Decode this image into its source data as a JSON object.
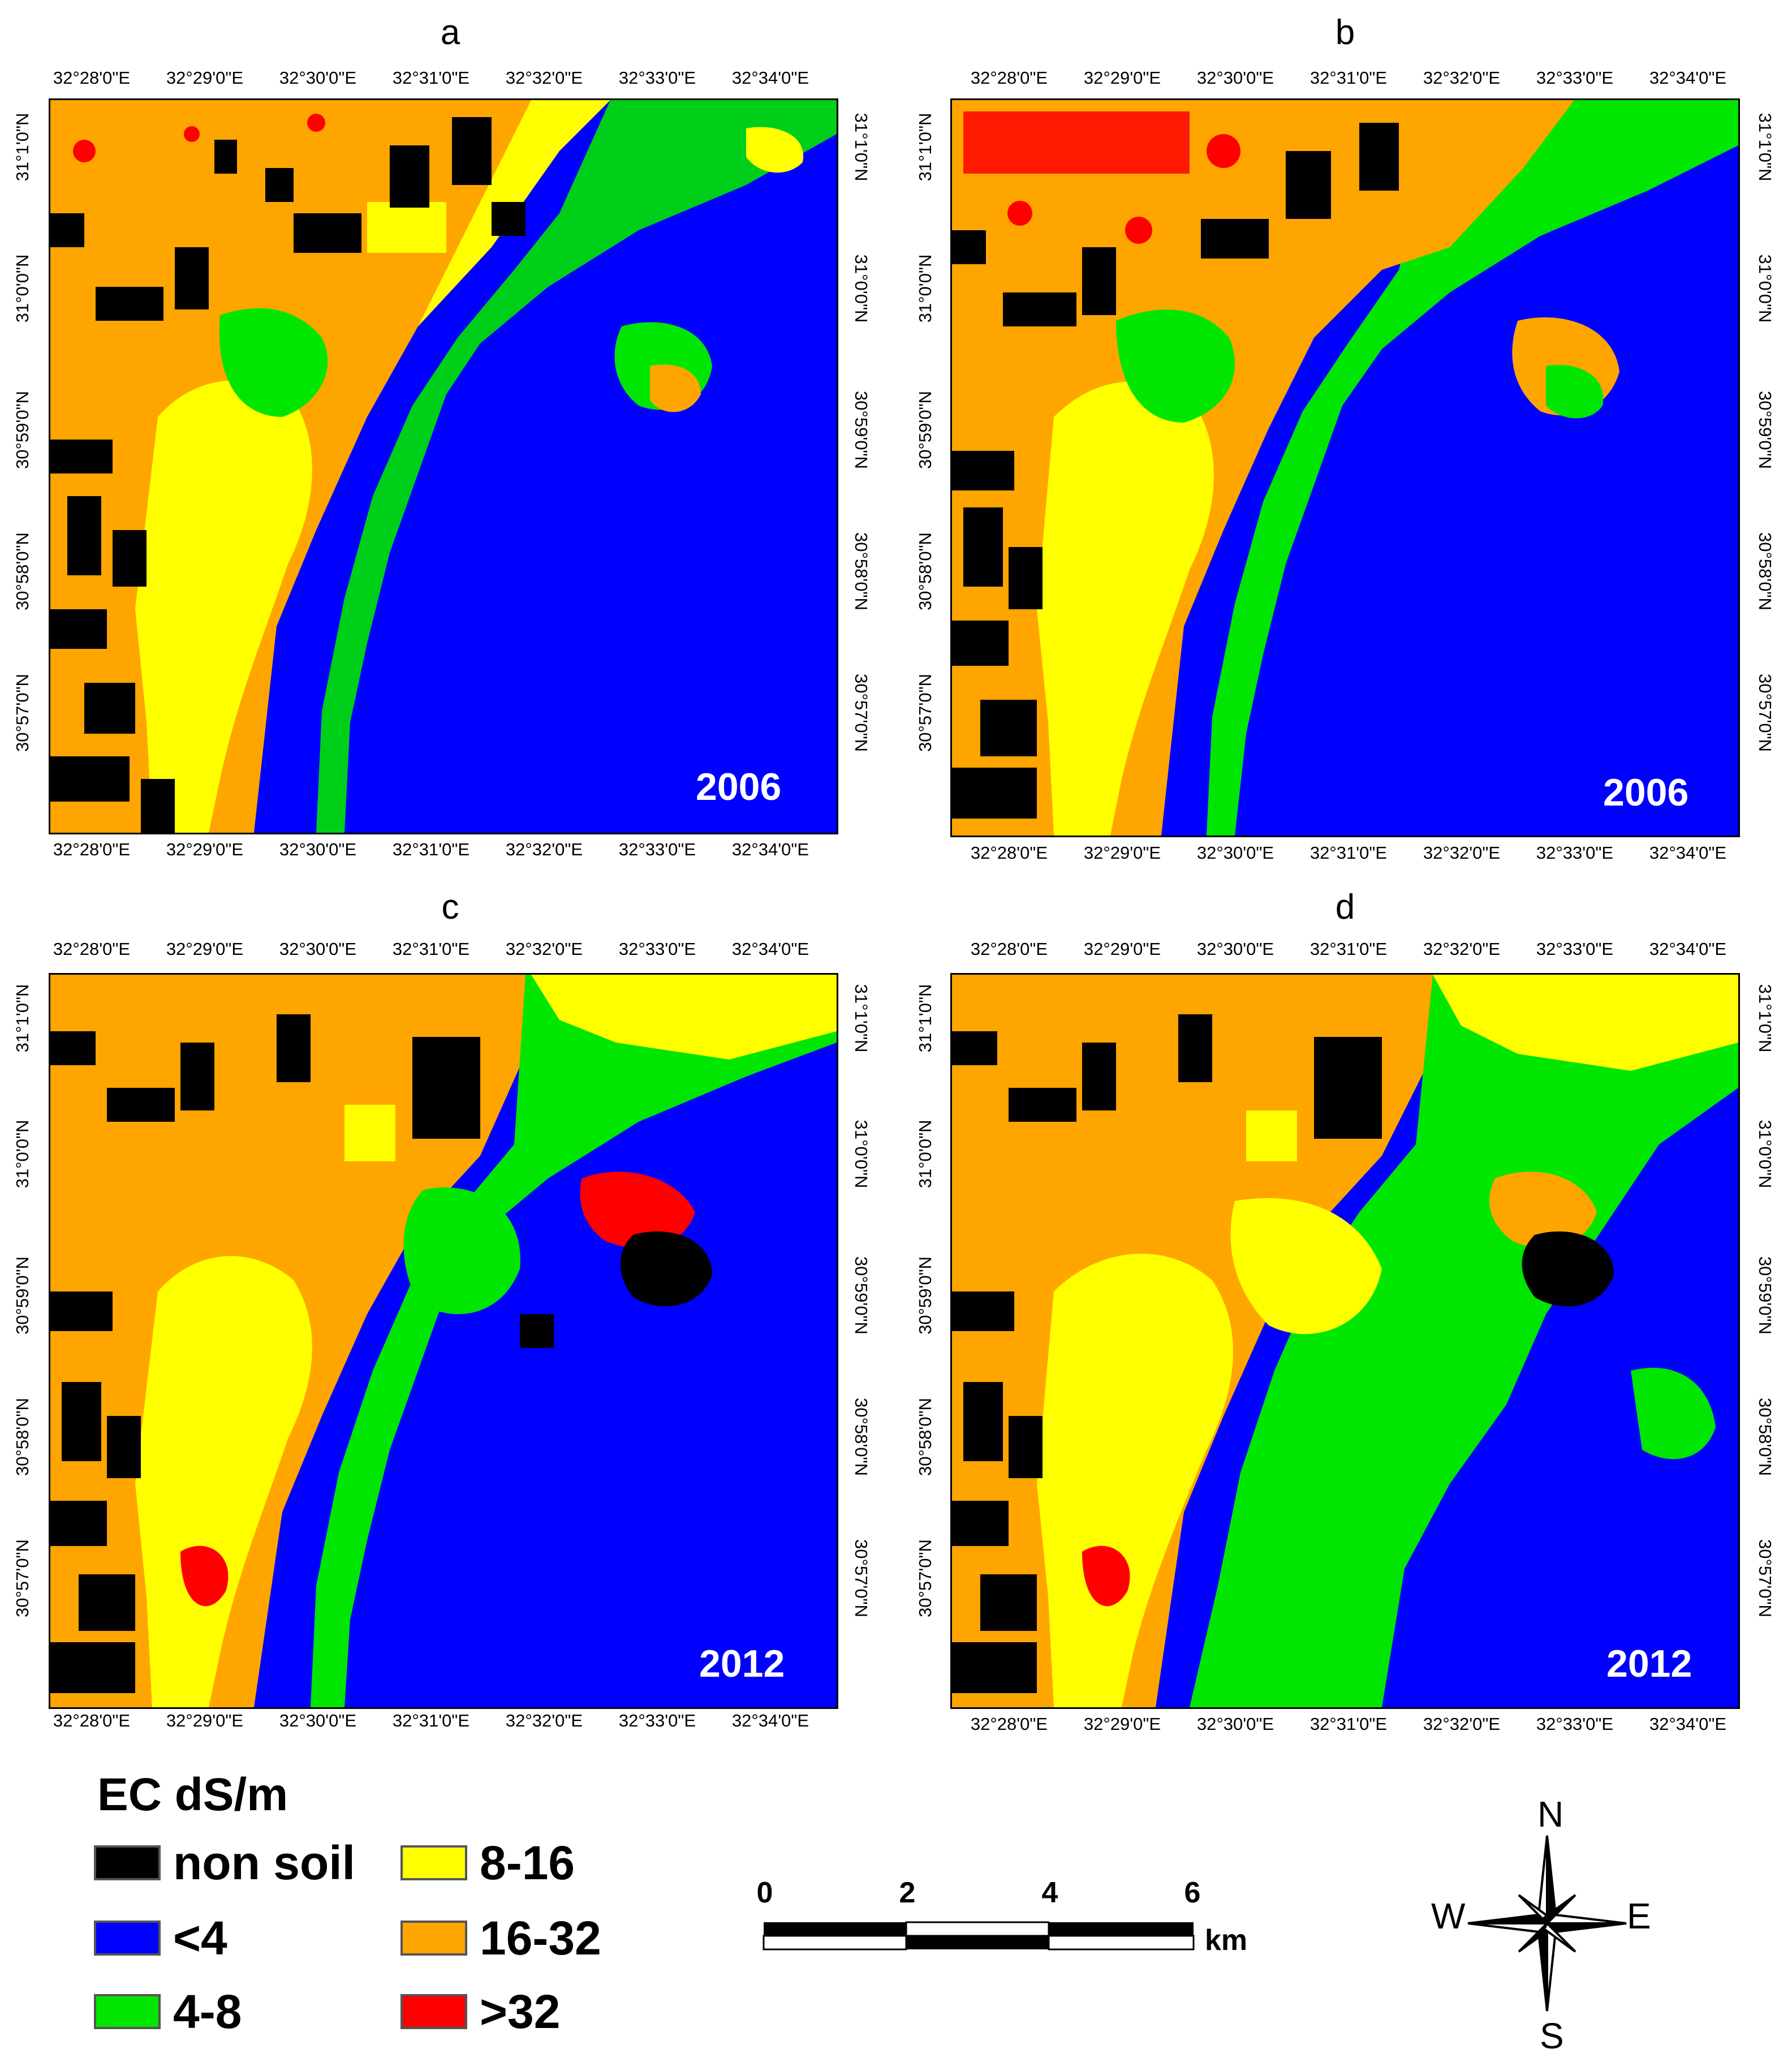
{
  "legend": {
    "title": "EC dS/m",
    "items": [
      {
        "label": "non soil",
        "color": "#000000"
      },
      {
        "label": "<4",
        "color": "#0000ff"
      },
      {
        "label": "4-8",
        "color": "#00e600"
      },
      {
        "label": "8-16",
        "color": "#ffff00"
      },
      {
        "label": "16-32",
        "color": "#ffa500"
      },
      {
        "label": ">32",
        "color": "#ff0000"
      }
    ]
  },
  "longitude_labels": [
    "32°28'0\"E",
    "32°29'0\"E",
    "32°30'0\"E",
    "32°31'0\"E",
    "32°32'0\"E",
    "32°33'0\"E",
    "32°34'0\"E"
  ],
  "latitude_labels": [
    "31°1'0\"N",
    "31°0'0\"N",
    "30°59'0\"N",
    "30°58'0\"N",
    "30°57'0\"N"
  ],
  "panels": [
    {
      "letter": "a",
      "year": "2006"
    },
    {
      "letter": "b",
      "year": "2006"
    },
    {
      "letter": "c",
      "year": "2012"
    },
    {
      "letter": "d",
      "year": "2012"
    }
  ],
  "scale_bar": {
    "ticks": [
      "0",
      "2",
      "4",
      "6"
    ],
    "unit": "km"
  },
  "compass": {
    "n": "N",
    "s": "S",
    "e": "E",
    "w": "W"
  }
}
